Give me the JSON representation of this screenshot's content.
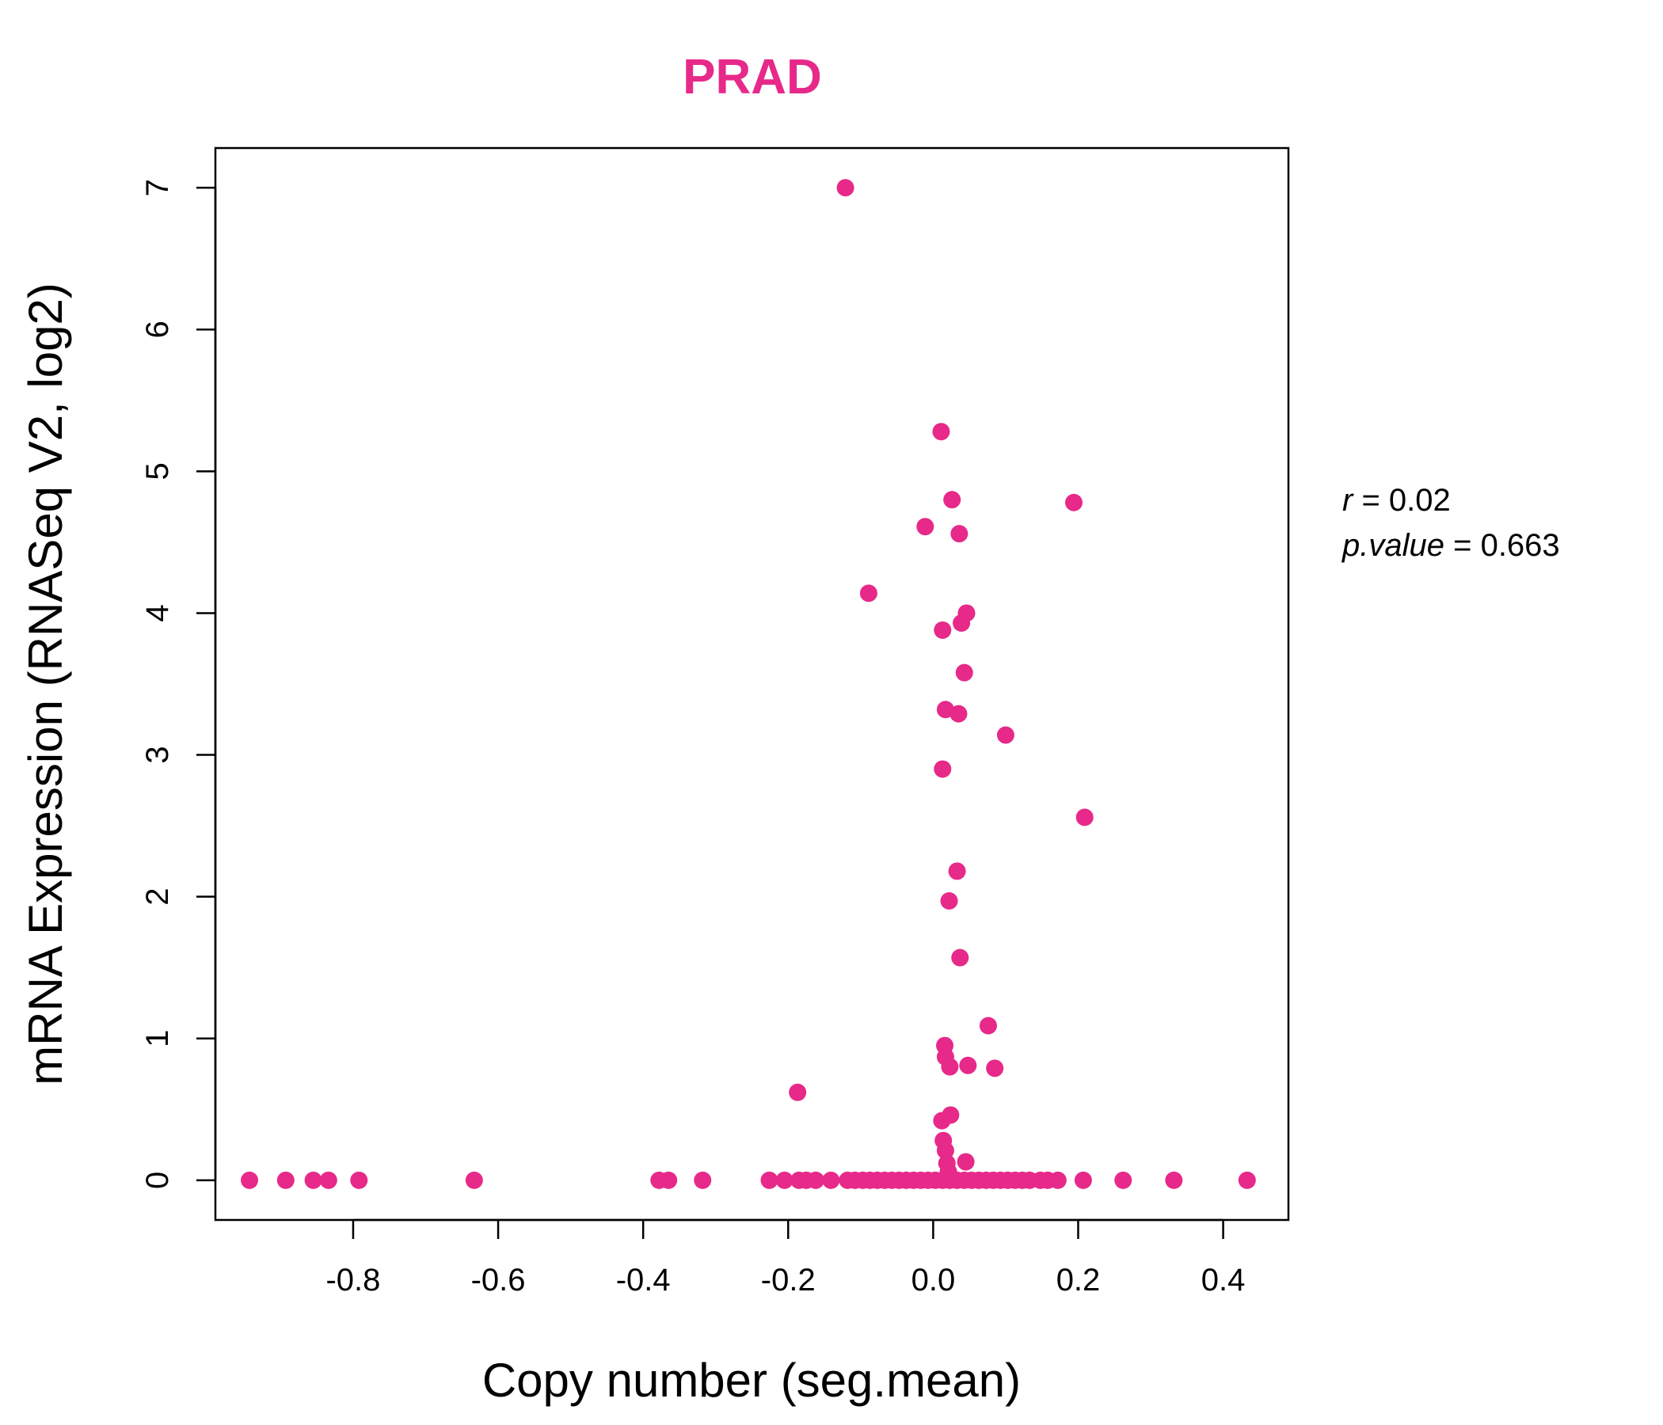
{
  "chart_data": {
    "type": "scatter",
    "title": "PRAD",
    "xlabel": "Copy number (seg.mean)",
    "ylabel": "mRNA Expression (RNASeq V2, log2)",
    "xlim": [
      -0.99,
      0.49
    ],
    "ylim": [
      -0.28,
      7.28
    ],
    "x_ticks": [
      -0.8,
      -0.6,
      -0.4,
      -0.2,
      0.0,
      0.2,
      0.4
    ],
    "x_tick_labels": [
      "-0.8",
      "-0.6",
      "-0.4",
      "-0.2",
      "0.0",
      "0.2",
      "0.4"
    ],
    "y_ticks": [
      0,
      1,
      2,
      3,
      4,
      5,
      6,
      7
    ],
    "y_tick_labels": [
      "0",
      "1",
      "2",
      "3",
      "4",
      "5",
      "6",
      "7"
    ],
    "grid": false,
    "color": "#E7298A",
    "points": [
      {
        "x": -0.943,
        "y": 0
      },
      {
        "x": -0.893,
        "y": 0
      },
      {
        "x": -0.855,
        "y": 0
      },
      {
        "x": -0.834,
        "y": 0
      },
      {
        "x": -0.792,
        "y": 0
      },
      {
        "x": -0.633,
        "y": 0
      },
      {
        "x": -0.378,
        "y": 0
      },
      {
        "x": -0.365,
        "y": 0
      },
      {
        "x": -0.318,
        "y": 0
      },
      {
        "x": -0.226,
        "y": 0
      },
      {
        "x": -0.205,
        "y": 0
      },
      {
        "x": -0.185,
        "y": 0
      },
      {
        "x": -0.175,
        "y": 0
      },
      {
        "x": -0.162,
        "y": 0
      },
      {
        "x": -0.141,
        "y": 0
      },
      {
        "x": -0.118,
        "y": 0
      },
      {
        "x": -0.108,
        "y": 0
      },
      {
        "x": -0.097,
        "y": 0
      },
      {
        "x": -0.087,
        "y": 0
      },
      {
        "x": -0.077,
        "y": 0
      },
      {
        "x": -0.067,
        "y": 0
      },
      {
        "x": -0.057,
        "y": 0
      },
      {
        "x": -0.047,
        "y": 0
      },
      {
        "x": -0.037,
        "y": 0
      },
      {
        "x": -0.027,
        "y": 0
      },
      {
        "x": -0.017,
        "y": 0
      },
      {
        "x": -0.007,
        "y": 0
      },
      {
        "x": 0.003,
        "y": 0
      },
      {
        "x": 0.013,
        "y": 0
      },
      {
        "x": 0.023,
        "y": 0
      },
      {
        "x": 0.033,
        "y": 0
      },
      {
        "x": 0.043,
        "y": 0
      },
      {
        "x": 0.053,
        "y": 0
      },
      {
        "x": 0.063,
        "y": 0
      },
      {
        "x": 0.073,
        "y": 0
      },
      {
        "x": 0.083,
        "y": 0
      },
      {
        "x": 0.093,
        "y": 0
      },
      {
        "x": 0.103,
        "y": 0
      },
      {
        "x": 0.113,
        "y": 0
      },
      {
        "x": 0.123,
        "y": 0
      },
      {
        "x": 0.133,
        "y": 0
      },
      {
        "x": 0.148,
        "y": 0
      },
      {
        "x": 0.158,
        "y": 0
      },
      {
        "x": 0.172,
        "y": 0
      },
      {
        "x": 0.207,
        "y": 0
      },
      {
        "x": 0.262,
        "y": 0
      },
      {
        "x": 0.332,
        "y": 0
      },
      {
        "x": 0.433,
        "y": 0
      },
      {
        "x": -0.121,
        "y": 7.0
      },
      {
        "x": 0.011,
        "y": 5.28
      },
      {
        "x": 0.026,
        "y": 4.8
      },
      {
        "x": 0.194,
        "y": 4.78
      },
      {
        "x": -0.011,
        "y": 4.61
      },
      {
        "x": 0.036,
        "y": 4.56
      },
      {
        "x": -0.089,
        "y": 4.14
      },
      {
        "x": 0.046,
        "y": 4.0
      },
      {
        "x": 0.039,
        "y": 3.93
      },
      {
        "x": 0.013,
        "y": 3.88
      },
      {
        "x": 0.043,
        "y": 3.58
      },
      {
        "x": 0.017,
        "y": 3.32
      },
      {
        "x": 0.035,
        "y": 3.29
      },
      {
        "x": 0.1,
        "y": 3.14
      },
      {
        "x": 0.013,
        "y": 2.9
      },
      {
        "x": 0.209,
        "y": 2.56
      },
      {
        "x": 0.033,
        "y": 2.18
      },
      {
        "x": 0.022,
        "y": 1.97
      },
      {
        "x": 0.037,
        "y": 1.57
      },
      {
        "x": 0.076,
        "y": 1.09
      },
      {
        "x": 0.016,
        "y": 0.95
      },
      {
        "x": 0.017,
        "y": 0.87
      },
      {
        "x": 0.048,
        "y": 0.81
      },
      {
        "x": 0.023,
        "y": 0.8
      },
      {
        "x": 0.085,
        "y": 0.79
      },
      {
        "x": -0.187,
        "y": 0.62
      },
      {
        "x": 0.024,
        "y": 0.46
      },
      {
        "x": 0.012,
        "y": 0.42
      },
      {
        "x": 0.014,
        "y": 0.28
      },
      {
        "x": 0.017,
        "y": 0.21
      },
      {
        "x": 0.045,
        "y": 0.13
      },
      {
        "x": 0.019,
        "y": 0.12
      },
      {
        "x": 0.021,
        "y": 0.06
      }
    ],
    "annotations": {
      "r_label": "r",
      "r_eq": " = 0.02",
      "p_label": "p.value",
      "p_eq": " = 0.663"
    }
  }
}
